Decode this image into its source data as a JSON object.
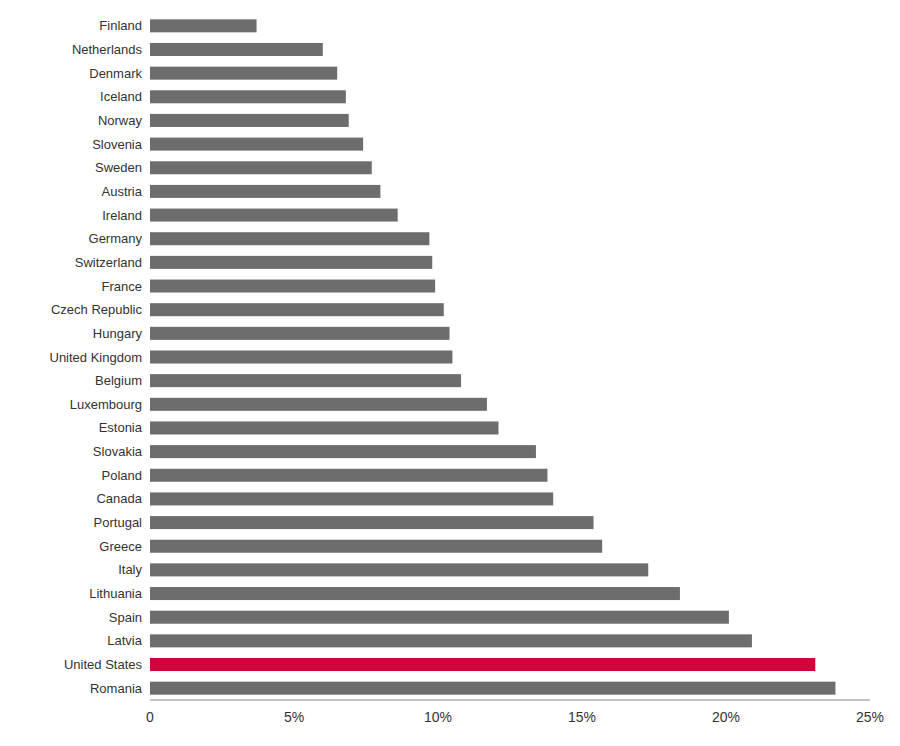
{
  "chart_data": {
    "type": "bar",
    "orientation": "horizontal",
    "categories": [
      "Romania",
      "United States",
      "Latvia",
      "Spain",
      "Lithuania",
      "Italy",
      "Greece",
      "Portugal",
      "Canada",
      "Poland",
      "Slovakia",
      "Estonia",
      "Luxembourg",
      "Belgium",
      "United Kingdom",
      "Hungary",
      "Czech Republic",
      "France",
      "Switzerland",
      "Germany",
      "Ireland",
      "Austria",
      "Sweden",
      "Slovenia",
      "Norway",
      "Iceland",
      "Denmark",
      "Netherlands",
      "Finland"
    ],
    "values": [
      23.8,
      23.1,
      20.9,
      20.1,
      18.4,
      17.3,
      15.7,
      15.4,
      14.0,
      13.8,
      13.4,
      12.1,
      11.7,
      10.8,
      10.5,
      10.4,
      10.2,
      9.9,
      9.8,
      9.7,
      8.6,
      8.0,
      7.7,
      7.4,
      6.9,
      6.8,
      6.5,
      6.0,
      3.7
    ],
    "colors": [
      "#6d6d6d",
      "#d4003b",
      "#6d6d6d",
      "#6d6d6d",
      "#6d6d6d",
      "#6d6d6d",
      "#6d6d6d",
      "#6d6d6d",
      "#6d6d6d",
      "#6d6d6d",
      "#6d6d6d",
      "#6d6d6d",
      "#6d6d6d",
      "#6d6d6d",
      "#6d6d6d",
      "#6d6d6d",
      "#6d6d6d",
      "#6d6d6d",
      "#6d6d6d",
      "#6d6d6d",
      "#6d6d6d",
      "#6d6d6d",
      "#6d6d6d",
      "#6d6d6d",
      "#6d6d6d",
      "#6d6d6d",
      "#6d6d6d",
      "#6d6d6d",
      "#6d6d6d"
    ],
    "xlim": [
      0,
      25
    ],
    "xticks": [
      0,
      {
        "value": 5,
        "label": "5%"
      },
      {
        "value": 10,
        "label": "10%"
      },
      {
        "value": 15,
        "label": "15%"
      },
      {
        "value": 20,
        "label": "20%"
      },
      {
        "value": 25,
        "label": "25%"
      }
    ],
    "grid": false
  }
}
